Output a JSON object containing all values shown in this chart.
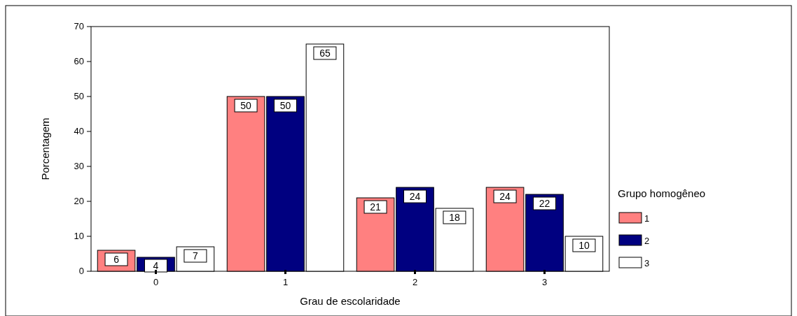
{
  "chart_data": {
    "type": "bar",
    "xlabel": "Grau de escolaridade",
    "ylabel": "Porcentagem",
    "legend_title": "Grupo homogêneo",
    "legend": "right",
    "categories": [
      "0",
      "1",
      "2",
      "3"
    ],
    "series": [
      {
        "name": "1",
        "color": "#ff8080",
        "values": [
          6,
          50,
          21,
          24
        ]
      },
      {
        "name": "2",
        "color": "#000080",
        "values": [
          4,
          50,
          24,
          22
        ]
      },
      {
        "name": "3",
        "color": "#ffffff",
        "values": [
          7,
          65,
          18,
          10
        ]
      }
    ],
    "data_labels": true,
    "ylim": [
      0,
      70
    ],
    "yticks": [
      0,
      10,
      20,
      30,
      40,
      50,
      60,
      70
    ]
  }
}
